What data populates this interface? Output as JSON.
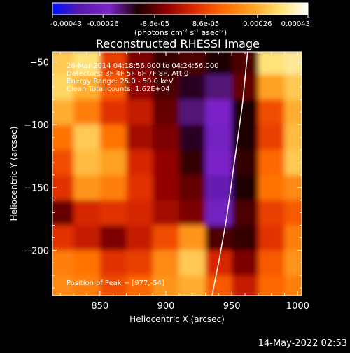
{
  "chart_data": {
    "type": "heatmap",
    "title": "Reconstructed RHESSI Image",
    "xlabel": "Heliocentric X (arcsec)",
    "ylabel": "Heliocentric Y (arcsec)",
    "xlim": [
      814,
      1003
    ],
    "ylim": [
      -236,
      -42
    ],
    "xticks": [
      850,
      900,
      950,
      1000
    ],
    "yticks": [
      -50,
      -100,
      -150,
      -200
    ],
    "colorbar": {
      "range": [
        -0.00043,
        0.00043
      ],
      "tick_labels": [
        "-0.00043",
        "-0.00026",
        "-8.6e-05",
        "8.6e-05",
        "0.00026",
        "0.00043"
      ],
      "unit_parts": [
        "(photons cm",
        "-2",
        " s",
        "-1",
        " asec",
        "-2",
        ")"
      ],
      "colormap": [
        "#0010ff",
        "#5a1aa8",
        "#7a24c8",
        "#1a0000",
        "#8b0000",
        "#dd2a00",
        "#ff6a00",
        "#ffa020",
        "#ffe070",
        "#ffffff"
      ]
    },
    "annotations": [
      "26-Mar-2014 04:18:56.000 to 04:24:56.000",
      "Detectors: 3F 4F 5F 6F 7F 8F, Att 0",
      "Energy Range: 25.0 - 50.0 keV",
      "Clean     Total counts: 1.62E+04"
    ],
    "peak_label": "Position of Peak = [977,-54]",
    "limb_curve": [
      [
        935,
        -236
      ],
      [
        940,
        -210
      ],
      [
        946,
        -175
      ],
      [
        952,
        -130
      ],
      [
        958,
        -85
      ],
      [
        962,
        -42
      ]
    ],
    "intensity_grid_note": "values in photons cm^-2 s^-1 asec^-2",
    "intensity_grid": {
      "x": [
        820,
        840,
        860,
        880,
        900,
        920,
        940,
        960,
        980,
        1000
      ],
      "y": [
        -50,
        -70,
        -90,
        -110,
        -130,
        -150,
        -170,
        -190,
        -210,
        -230
      ],
      "z": [
        [
          0.0003,
          0.00034,
          8e-05,
          -6e-05,
          -0.00012,
          -0.0001,
          -0.00014,
          -0.0001,
          0.00034,
          0.00036
        ],
        [
          0.00032,
          0.00026,
          0.00012,
          -4e-05,
          -0.0001,
          -0.00016,
          -0.0002,
          -8e-05,
          0.00024,
          0.0003
        ],
        [
          0.00026,
          0.00018,
          6e-05,
          2e-05,
          -8e-05,
          -0.0002,
          -0.00024,
          -0.00014,
          0.0001,
          0.00026
        ],
        [
          0.00016,
          0.0003,
          0.00016,
          -2e-05,
          -6e-05,
          -0.00016,
          -0.00026,
          -0.00014,
          8e-05,
          0.00028
        ],
        [
          0.0001,
          0.00028,
          0.00024,
          4e-05,
          -4e-05,
          -0.00012,
          -0.00024,
          -0.00012,
          0.00014,
          0.0003
        ],
        [
          6e-05,
          0.00022,
          0.00018,
          6e-05,
          -4e-05,
          -8e-05,
          -0.0003,
          -0.00014,
          0.00016,
          0.0002
        ],
        [
          -8e-05,
          4e-05,
          6e-05,
          4e-05,
          -2e-05,
          -6e-05,
          -0.00026,
          -0.0001,
          8e-05,
          0.00012
        ],
        [
          6e-05,
          2e-05,
          -6e-05,
          2e-05,
          0.0001,
          0.00022,
          -0.0001,
          -0.00012,
          6e-05,
          0.00018
        ],
        [
          0.00018,
          0.00016,
          6e-05,
          8e-05,
          0.0002,
          0.0003,
          4e-05,
          -6e-05,
          0.00012,
          0.00022
        ],
        [
          0.0002,
          0.00018,
          0.0001,
          0.00014,
          0.00022,
          0.00026,
          0.00012,
          2e-05,
          0.00014,
          0.00018
        ]
      ]
    }
  },
  "footer": {
    "timestamp": "14-May-2022 02:53"
  }
}
